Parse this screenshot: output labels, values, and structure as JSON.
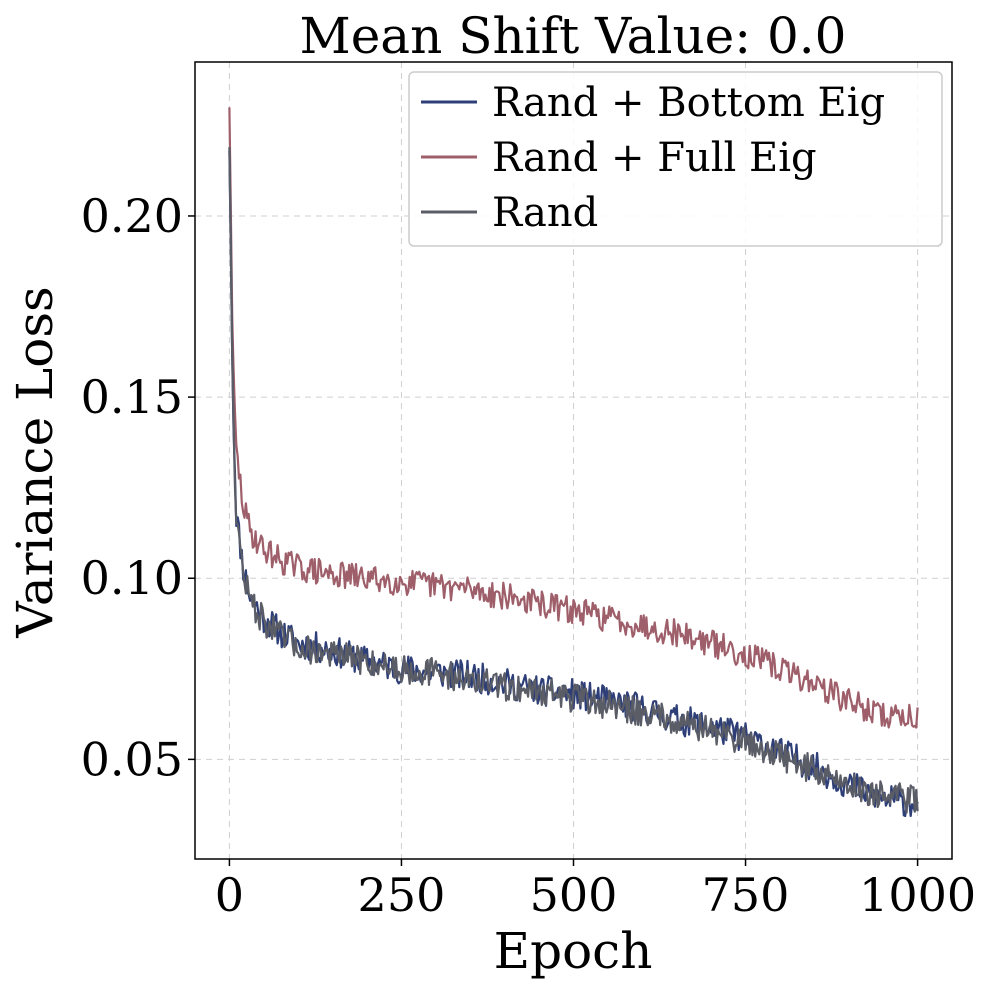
{
  "chart_data": {
    "type": "line",
    "title": "Mean Shift Value: 0.0",
    "xlabel": "Epoch",
    "ylabel": "Variance Loss",
    "xlim": [
      -50,
      1050
    ],
    "ylim": [
      0.0225,
      0.2425
    ],
    "xticks": [
      0,
      250,
      500,
      750,
      1000
    ],
    "xtick_labels": [
      "0",
      "250",
      "500",
      "750",
      "1000"
    ],
    "yticks": [
      0.05,
      0.1,
      0.15,
      0.2
    ],
    "ytick_labels": [
      "0.05",
      "0.10",
      "0.15",
      "0.20"
    ],
    "grid": true,
    "legend_position": "top-right",
    "series": [
      {
        "name": "Rand + Bottom Eig",
        "color": "#2e3f78",
        "x": [
          0,
          5,
          10,
          20,
          30,
          50,
          75,
          100,
          150,
          200,
          250,
          300,
          350,
          400,
          450,
          500,
          550,
          600,
          650,
          700,
          750,
          800,
          850,
          900,
          950,
          1000
        ],
        "y": [
          0.218,
          0.15,
          0.118,
          0.103,
          0.095,
          0.089,
          0.085,
          0.082,
          0.08,
          0.077,
          0.075,
          0.074,
          0.073,
          0.071,
          0.069,
          0.068,
          0.066,
          0.064,
          0.061,
          0.059,
          0.056,
          0.052,
          0.048,
          0.043,
          0.039,
          0.038
        ],
        "noise": 0.0042
      },
      {
        "name": "Rand + Full Eig",
        "color": "#9e5f6a",
        "x": [
          0,
          5,
          10,
          20,
          30,
          50,
          75,
          100,
          150,
          200,
          250,
          300,
          350,
          400,
          450,
          500,
          550,
          600,
          650,
          700,
          750,
          800,
          850,
          900,
          950,
          1000
        ],
        "y": [
          0.23,
          0.16,
          0.135,
          0.12,
          0.113,
          0.108,
          0.105,
          0.103,
          0.101,
          0.1,
          0.099,
          0.098,
          0.097,
          0.095,
          0.093,
          0.091,
          0.089,
          0.087,
          0.085,
          0.082,
          0.079,
          0.075,
          0.071,
          0.066,
          0.062,
          0.062
        ],
        "noise": 0.0038
      },
      {
        "name": "Rand",
        "color": "#5a5c66",
        "x": [
          0,
          5,
          10,
          20,
          30,
          50,
          75,
          100,
          150,
          200,
          250,
          300,
          350,
          400,
          450,
          500,
          550,
          600,
          650,
          700,
          750,
          800,
          850,
          900,
          950,
          1000
        ],
        "y": [
          0.219,
          0.15,
          0.116,
          0.102,
          0.094,
          0.088,
          0.084,
          0.081,
          0.079,
          0.077,
          0.075,
          0.074,
          0.072,
          0.07,
          0.069,
          0.067,
          0.065,
          0.063,
          0.061,
          0.058,
          0.055,
          0.051,
          0.047,
          0.043,
          0.04,
          0.039
        ],
        "noise": 0.004
      }
    ]
  }
}
